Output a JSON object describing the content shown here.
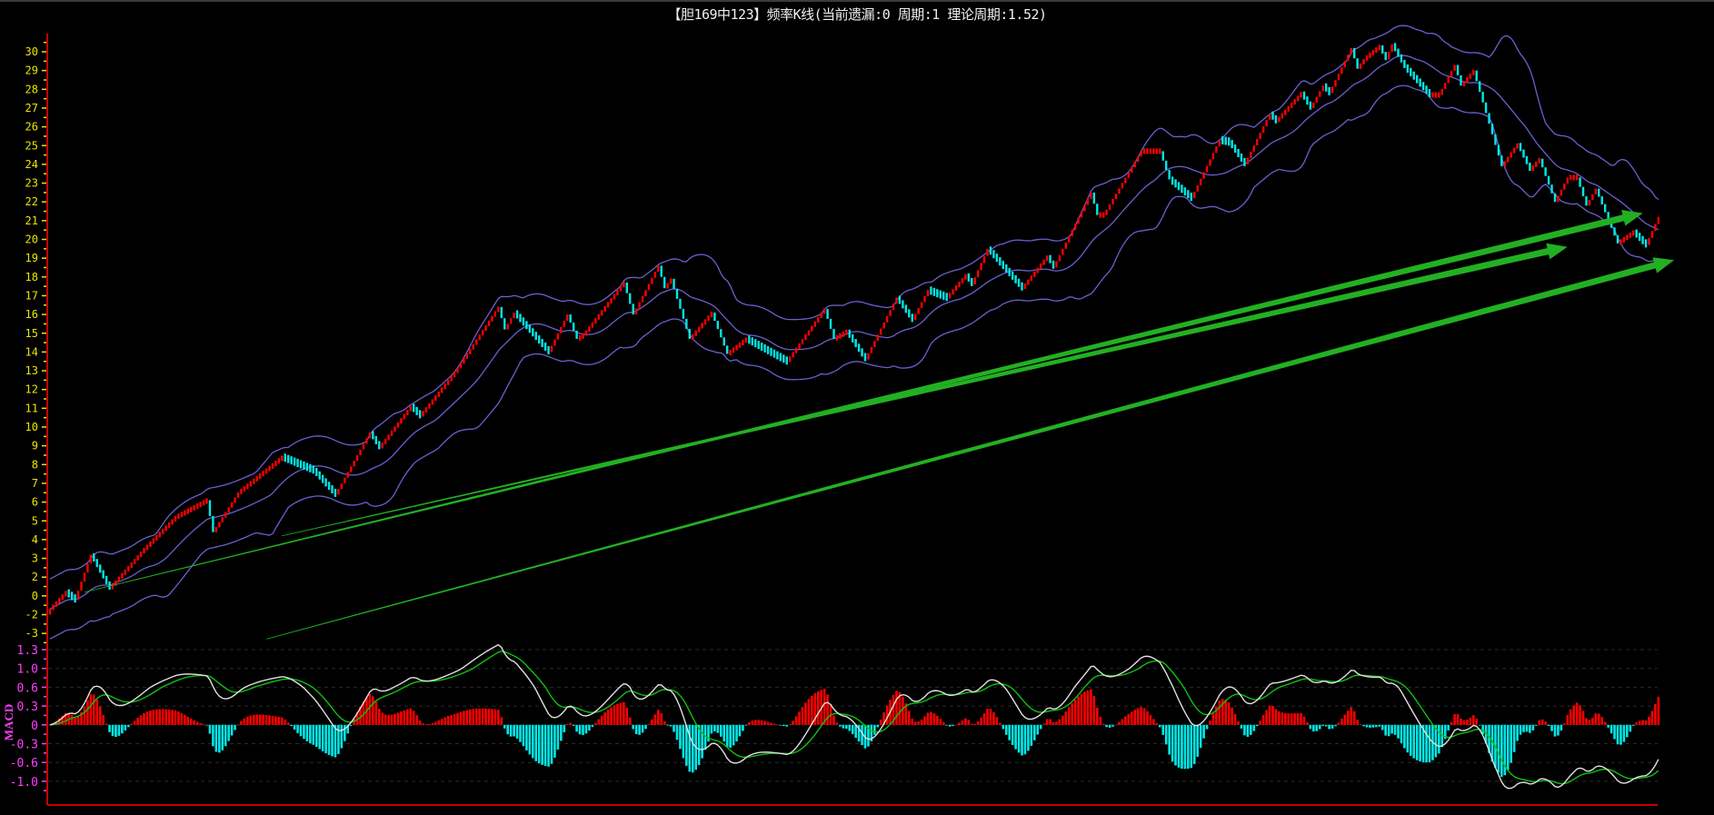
{
  "title": "【胆169中123】频率K线(当前遗漏:0 周期:1 理论周期:1.52)",
  "colors": {
    "background": "#000000",
    "axis": "#c80000",
    "price_tick_labels": "#e8e800",
    "macd_tick_labels": "#ff40ff",
    "up_candle": "#ff0000",
    "down_candle": "#00e8e8",
    "bollinger_bands": "#6a5fd0",
    "trend_arrows": "#22b022",
    "dif_line": "#e0e0e0",
    "dea_line": "#10c010",
    "macd_hist_up": "#ff0000",
    "macd_hist_down": "#00e8e8"
  },
  "chart_data": [
    {
      "type": "candlestick",
      "title": "【胆169中123】频率K线(当前遗漏:0 周期:1 理论周期:1.52)",
      "y_tick_labels": [
        "30",
        "29",
        "28",
        "27",
        "26",
        "25",
        "24",
        "23",
        "22",
        "21",
        "20",
        "19",
        "18",
        "17",
        "16",
        "15",
        "14",
        "13",
        "12",
        "11",
        "10",
        "9",
        "8",
        "7",
        "6",
        "5",
        "4",
        "3",
        "2",
        "0",
        "-2",
        "-3"
      ],
      "ylim": [
        -1.5,
        30.5
      ],
      "candle_count": 514,
      "close_path": [
        [
          0,
          0.3
        ],
        [
          5,
          1.2
        ],
        [
          8,
          0.8
        ],
        [
          13,
          3.2
        ],
        [
          19,
          1.4
        ],
        [
          30,
          3.5
        ],
        [
          40,
          5.2
        ],
        [
          50,
          6.1
        ],
        [
          52,
          4.4
        ],
        [
          60,
          6.5
        ],
        [
          74,
          8.4
        ],
        [
          84,
          7.7
        ],
        [
          91,
          6.4
        ],
        [
          102,
          9.7
        ],
        [
          105,
          8.9
        ],
        [
          115,
          11.1
        ],
        [
          118,
          10.6
        ],
        [
          129,
          12.9
        ],
        [
          143,
          16.4
        ],
        [
          145,
          15.2
        ],
        [
          148,
          16.1
        ],
        [
          159,
          14.0
        ],
        [
          165,
          16.0
        ],
        [
          168,
          14.7
        ],
        [
          170,
          14.9
        ],
        [
          183,
          17.7
        ],
        [
          186,
          16.0
        ],
        [
          194,
          18.6
        ],
        [
          196,
          17.4
        ],
        [
          198,
          17.9
        ],
        [
          204,
          14.7
        ],
        [
          211,
          16.1
        ],
        [
          216,
          13.9
        ],
        [
          222,
          14.7
        ],
        [
          235,
          13.5
        ],
        [
          247,
          16.3
        ],
        [
          250,
          14.7
        ],
        [
          254,
          15.1
        ],
        [
          260,
          13.6
        ],
        [
          270,
          16.9
        ],
        [
          275,
          15.7
        ],
        [
          280,
          17.3
        ],
        [
          286,
          16.9
        ],
        [
          292,
          18.1
        ],
        [
          294,
          17.6
        ],
        [
          299,
          19.5
        ],
        [
          310,
          17.4
        ],
        [
          318,
          19.1
        ],
        [
          320,
          18.5
        ],
        [
          332,
          22.5
        ],
        [
          334,
          21.3
        ],
        [
          336,
          21.3
        ],
        [
          348,
          24.7
        ],
        [
          354,
          24.7
        ],
        [
          357,
          23.2
        ],
        [
          364,
          22.2
        ],
        [
          373,
          25.3
        ],
        [
          376,
          25.2
        ],
        [
          381,
          24.0
        ],
        [
          389,
          26.7
        ],
        [
          391,
          26.3
        ],
        [
          399,
          27.8
        ],
        [
          402,
          27.0
        ],
        [
          406,
          28.2
        ],
        [
          408,
          27.8
        ],
        [
          415,
          30.2
        ],
        [
          417,
          29.1
        ],
        [
          419,
          29.6
        ],
        [
          424,
          30.3
        ],
        [
          426,
          29.6
        ],
        [
          428,
          30.4
        ],
        [
          432,
          29.2
        ],
        [
          440,
          27.7
        ],
        [
          443,
          27.7
        ],
        [
          448,
          29.3
        ],
        [
          450,
          28.2
        ],
        [
          454,
          29.0
        ],
        [
          463,
          23.9
        ],
        [
          468,
          25.1
        ],
        [
          472,
          23.7
        ],
        [
          475,
          24.3
        ],
        [
          480,
          22.0
        ],
        [
          484,
          23.3
        ],
        [
          487,
          23.3
        ],
        [
          490,
          21.8
        ],
        [
          493,
          22.7
        ],
        [
          500,
          19.8
        ],
        [
          505,
          20.4
        ],
        [
          509,
          19.7
        ],
        [
          513,
          21.2
        ]
      ],
      "overlays": [
        "bollinger-upper",
        "bollinger-middle",
        "bollinger-lower"
      ],
      "trend_arrows": [
        {
          "from": [
            74,
            4.2
          ],
          "to": [
            484,
            19.6
          ]
        },
        {
          "from": [
            11,
            1.2
          ],
          "to": [
            508,
            21.4
          ]
        },
        {
          "from": [
            69,
            -1.3
          ],
          "to": [
            518,
            18.9
          ]
        }
      ],
      "grid": false
    },
    {
      "type": "line",
      "ylabel": "MACD",
      "y_tick_labels": [
        "1.3",
        "1.0",
        "0.6",
        "0.3",
        "0",
        "-0.3",
        "-0.6",
        "-1.0"
      ],
      "y_tick_values": [
        1.3,
        1.0,
        0.6,
        0.3,
        0,
        -0.3,
        -0.6,
        -1.0
      ],
      "series_lines": [
        "DIF (white)",
        "DEA (green)"
      ],
      "histogram": "red above zero, cyan below zero",
      "grid": "dashed horizontal at each tick"
    }
  ]
}
